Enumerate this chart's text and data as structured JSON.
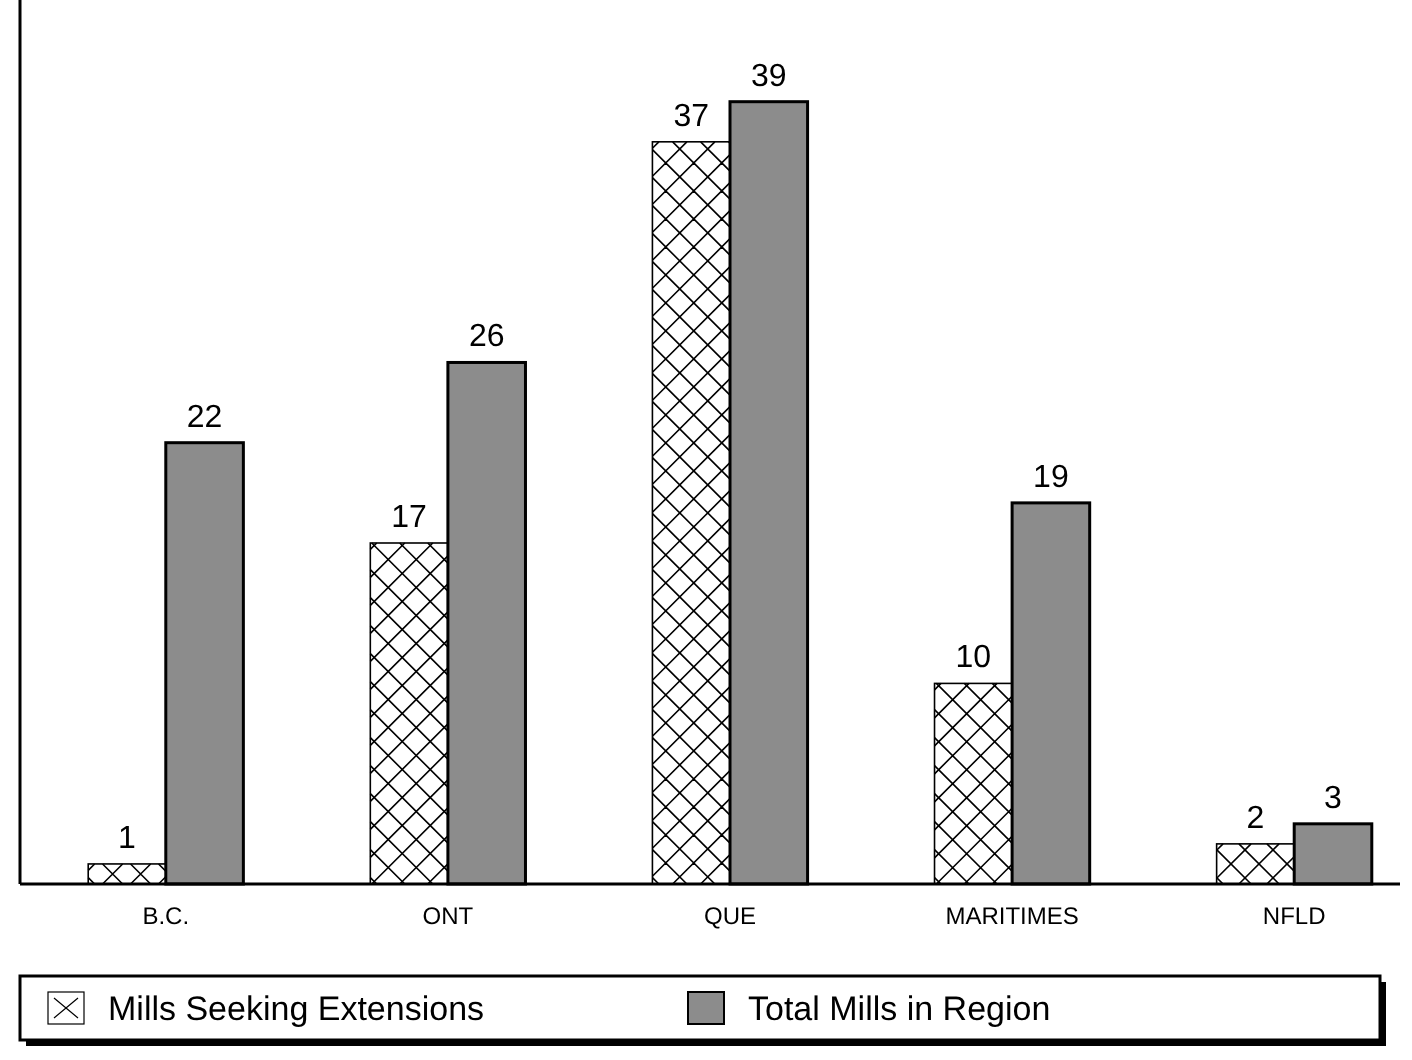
{
  "chart_data": {
    "type": "bar",
    "categories": [
      "B.C.",
      "ONT",
      "QUE",
      "MARITIMES",
      "NFLD"
    ],
    "series": [
      {
        "name": "Mills Seeking Extensions",
        "color": "#ffffff",
        "values": [
          1,
          17,
          37,
          10,
          2
        ]
      },
      {
        "name": "Total Mills in Region",
        "color": "#8c8c8c",
        "values": [
          22,
          26,
          39,
          19,
          3
        ]
      }
    ],
    "data_labels": true,
    "legend": "bottom"
  }
}
